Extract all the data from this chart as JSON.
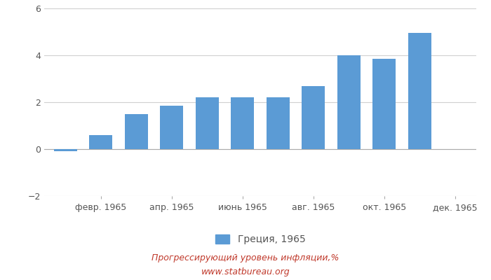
{
  "month_values": [
    -0.1,
    0.6,
    1.5,
    1.85,
    2.2,
    2.2,
    2.2,
    2.7,
    4.0,
    3.85,
    4.95,
    0
  ],
  "x_tick_positions": [
    1,
    3,
    5,
    7,
    9,
    11
  ],
  "x_tick_labels": [
    "февр. 1965",
    "апр. 1965",
    "июнь 1965",
    "авг. 1965",
    "окт. 1965",
    "дек. 1965"
  ],
  "bar_color": "#5b9bd5",
  "ylim": [
    -2,
    6
  ],
  "yticks": [
    -2,
    0,
    2,
    4,
    6
  ],
  "legend_label": "Греция, 1965",
  "subtitle": "Прогрессирующий уровень инфляции,%",
  "website": "www.statbureau.org",
  "background_color": "#ffffff",
  "grid_color": "#d0d0d0",
  "text_color": "#555555",
  "subtitle_color": "#c0392b"
}
